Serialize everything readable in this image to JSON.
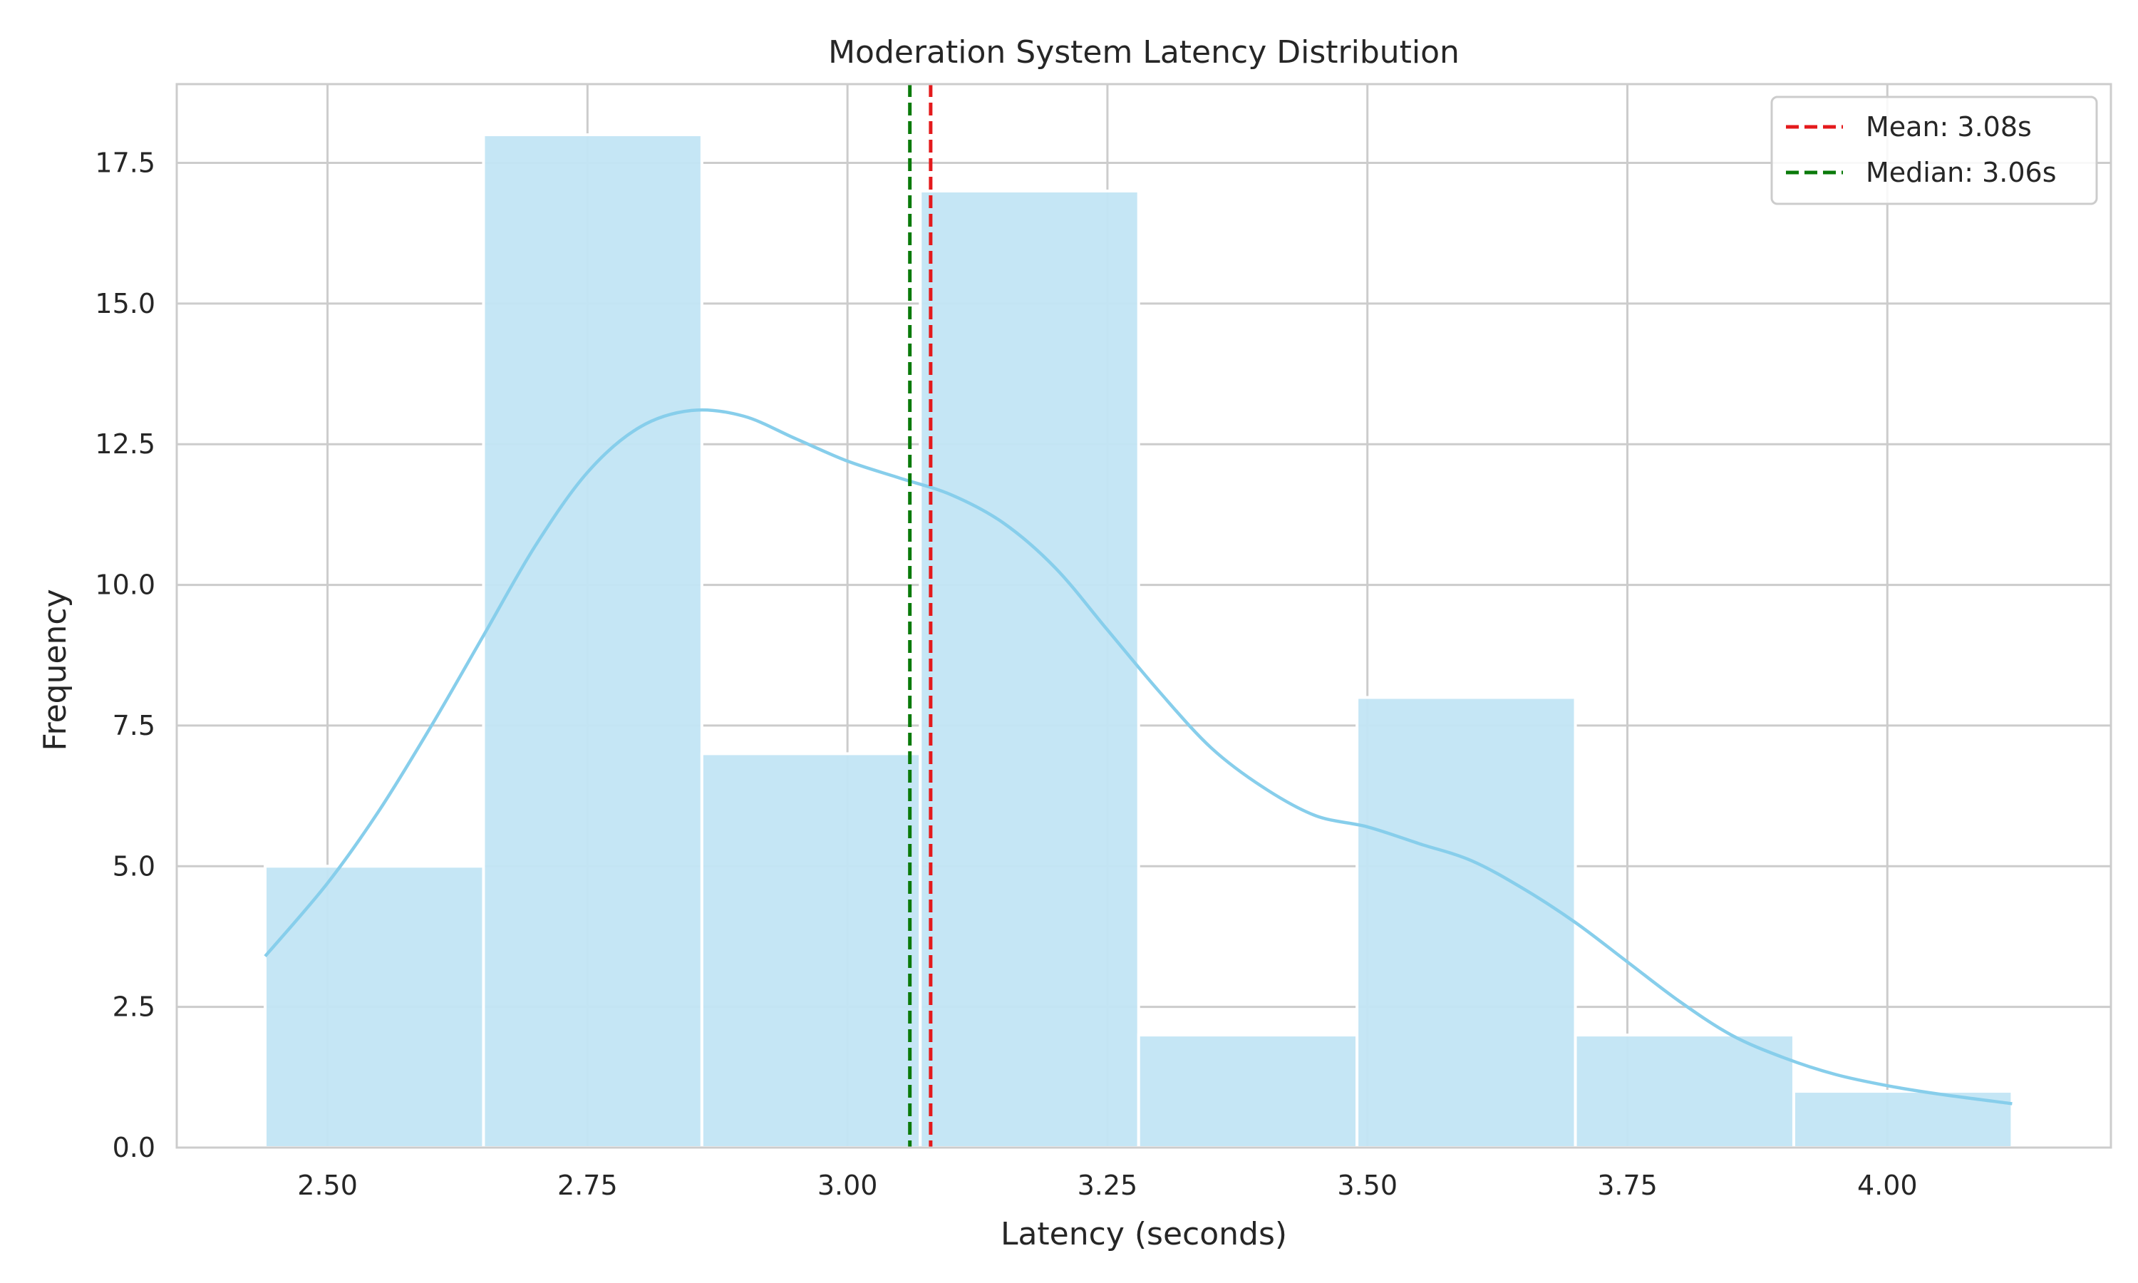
{
  "chart_data": {
    "type": "bar",
    "title": "Moderation System Latency Distribution",
    "xlabel": "Latency (seconds)",
    "ylabel": "Frequency",
    "xlim": [
      2.355,
      4.215
    ],
    "ylim": [
      0,
      18.9
    ],
    "x_ticks": [
      2.5,
      2.75,
      3.0,
      3.25,
      3.5,
      3.75,
      4.0
    ],
    "x_tick_labels": [
      "2.50",
      "2.75",
      "3.00",
      "3.25",
      "3.50",
      "3.75",
      "4.00"
    ],
    "y_ticks": [
      0,
      2.5,
      5,
      7.5,
      10,
      12.5,
      15,
      17.5
    ],
    "y_tick_labels": [
      "0.0",
      "2.5",
      "5.0",
      "7.5",
      "10.0",
      "12.5",
      "15.0",
      "17.5"
    ],
    "grid": true,
    "bins": [
      {
        "start": 2.44,
        "end": 2.65,
        "count": 5
      },
      {
        "start": 2.65,
        "end": 2.86,
        "count": 18
      },
      {
        "start": 2.86,
        "end": 3.07,
        "count": 7
      },
      {
        "start": 3.07,
        "end": 3.28,
        "count": 17
      },
      {
        "start": 3.28,
        "end": 3.49,
        "count": 2
      },
      {
        "start": 3.49,
        "end": 3.7,
        "count": 8
      },
      {
        "start": 3.7,
        "end": 3.91,
        "count": 2
      },
      {
        "start": 3.91,
        "end": 4.12,
        "count": 1
      }
    ],
    "kde": {
      "x": [
        2.44,
        2.5,
        2.55,
        2.6,
        2.65,
        2.7,
        2.75,
        2.8,
        2.85,
        2.9,
        2.95,
        3.0,
        3.05,
        3.1,
        3.15,
        3.2,
        3.25,
        3.3,
        3.35,
        3.4,
        3.45,
        3.5,
        3.55,
        3.6,
        3.65,
        3.7,
        3.75,
        3.8,
        3.85,
        3.9,
        3.95,
        4.0,
        4.05,
        4.12
      ],
      "y": [
        3.4,
        4.7,
        6.0,
        7.5,
        9.1,
        10.7,
        12.0,
        12.8,
        13.1,
        13.0,
        12.6,
        12.2,
        11.9,
        11.6,
        11.1,
        10.3,
        9.2,
        8.1,
        7.1,
        6.4,
        5.9,
        5.7,
        5.4,
        5.1,
        4.6,
        4.0,
        3.3,
        2.6,
        2.0,
        1.6,
        1.3,
        1.1,
        0.95,
        0.78
      ]
    },
    "lines": [
      {
        "name": "Mean: 3.08s",
        "x": 3.08,
        "color": "#e41a1c",
        "style": "dashed"
      },
      {
        "name": "Median: 3.06s",
        "x": 3.06,
        "color": "#0a7a0a",
        "style": "dashed"
      }
    ],
    "legend_position": "top-right",
    "colors": {
      "bar_fill": "#c2e5f4",
      "bar_edge": "#ffffff",
      "kde_line": "#87ceeb",
      "grid": "#cccccc",
      "frame": "#cccccc"
    }
  }
}
